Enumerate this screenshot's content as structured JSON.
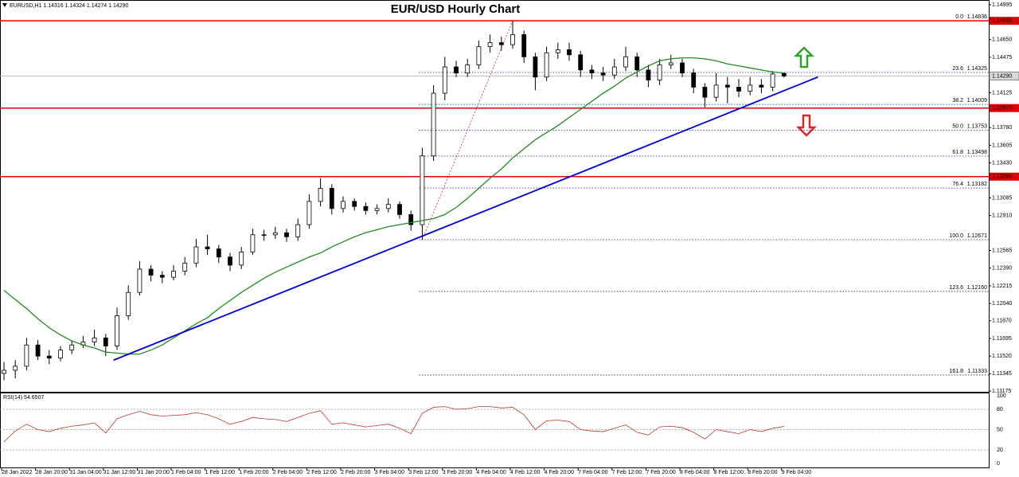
{
  "chart_data": {
    "type": "candlestick",
    "title": "EUR/USD Hourly Chart",
    "header": "EURUSD,H1  1.14316 1.14324 1.14274 1.14290",
    "categories": [
      "28 Jan 2022",
      null,
      null,
      "28 Jan 20:00",
      null,
      null,
      "31 Jan 04:00",
      null,
      null,
      "31 Jan 12:00",
      null,
      null,
      "31 Jan 20:00",
      null,
      null,
      "1 Feb 04:00",
      null,
      null,
      "1 Feb 12:00",
      null,
      null,
      "1 Feb 20:00",
      null,
      null,
      "2 Feb 04:00",
      null,
      null,
      "2 Feb 12:00",
      null,
      null,
      "2 Feb 20:00",
      null,
      null,
      "3 Feb 04:00",
      null,
      null,
      "3 Feb 12:00",
      null,
      null,
      "3 Feb 20:00",
      null,
      null,
      "4 Feb 04:00",
      null,
      null,
      "4 Feb 12:00",
      null,
      null,
      "4 Feb 20:00",
      null,
      null,
      "7 Feb 04:00",
      null,
      null,
      "7 Feb 12:00",
      null,
      null,
      "7 Feb 20:00",
      null,
      null,
      "8 Feb 04:00",
      null,
      null,
      "8 Feb 12:00",
      null,
      null,
      "8 Feb 20:00",
      null,
      null,
      "9 Feb 04:00"
    ],
    "open": [
      1.1135,
      1.1138,
      1.1142,
      1.1163,
      1.1152,
      1.115,
      1.1158,
      1.1163,
      1.1166,
      1.117,
      1.1162,
      1.1192,
      1.1215,
      1.1238,
      1.1232,
      1.123,
      1.1236,
      1.1244,
      1.126,
      1.1258,
      1.125,
      1.1242,
      1.1255,
      1.1272,
      1.1272,
      1.1274,
      1.127,
      1.1282,
      1.1305,
      1.1318,
      1.1298,
      1.1305,
      1.13,
      1.1296,
      1.1298,
      1.1302,
      1.1292,
      1.1282,
      1.135,
      1.1412,
      1.1438,
      1.1432,
      1.144,
      1.1458,
      1.1462,
      1.146,
      1.147,
      1.1448,
      1.1428,
      1.1452,
      1.1455,
      1.145,
      1.1435,
      1.1432,
      1.143,
      1.1438,
      1.1448,
      1.1435,
      1.1425,
      1.144,
      1.1442,
      1.1432,
      1.1418,
      1.1408,
      1.142,
      1.1418,
      1.1414,
      1.142,
      1.1418,
      1.14316
    ],
    "high": [
      1.1146,
      1.1148,
      1.117,
      1.1168,
      1.1158,
      1.1162,
      1.1167,
      1.1172,
      1.1178,
      1.1174,
      1.12,
      1.1222,
      1.1246,
      1.1242,
      1.1236,
      1.1242,
      1.125,
      1.1268,
      1.1272,
      1.1262,
      1.1254,
      1.126,
      1.1278,
      1.1277,
      1.128,
      1.1278,
      1.1288,
      1.1312,
      1.1328,
      1.1322,
      1.131,
      1.1308,
      1.1304,
      1.1302,
      1.1308,
      1.1305,
      1.1296,
      1.1358,
      1.142,
      1.1448,
      1.1444,
      1.1446,
      1.1464,
      1.147,
      1.1468,
      1.14836,
      1.1474,
      1.1452,
      1.1458,
      1.1462,
      1.1462,
      1.1454,
      1.144,
      1.1438,
      1.1446,
      1.1458,
      1.1452,
      1.144,
      1.1446,
      1.145,
      1.1446,
      1.1436,
      1.1422,
      1.1432,
      1.1428,
      1.1426,
      1.1428,
      1.1426,
      1.1434,
      1.14324
    ],
    "low": [
      1.1128,
      1.113,
      1.1138,
      1.1148,
      1.1144,
      1.1147,
      1.1154,
      1.116,
      1.1162,
      1.1152,
      1.1158,
      1.1188,
      1.1212,
      1.1226,
      1.1224,
      1.1227,
      1.1232,
      1.124,
      1.1252,
      1.1244,
      1.1236,
      1.1238,
      1.1252,
      1.1266,
      1.1268,
      1.1265,
      1.1266,
      1.1278,
      1.13,
      1.1292,
      1.1294,
      1.1296,
      1.1292,
      1.1292,
      1.1294,
      1.1288,
      1.1276,
      1.12671,
      1.1345,
      1.1405,
      1.1428,
      1.1428,
      1.1436,
      1.1452,
      1.1454,
      1.1456,
      1.1442,
      1.1415,
      1.1424,
      1.1446,
      1.1444,
      1.1428,
      1.1426,
      1.1424,
      1.1426,
      1.1434,
      1.1428,
      1.1418,
      1.142,
      1.1436,
      1.1428,
      1.1412,
      1.1398,
      1.1404,
      1.1402,
      1.1408,
      1.141,
      1.1412,
      1.1414,
      1.14274
    ],
    "close": [
      1.1138,
      1.1142,
      1.1163,
      1.1152,
      1.115,
      1.1158,
      1.1163,
      1.1166,
      1.117,
      1.1162,
      1.1192,
      1.1215,
      1.1238,
      1.1232,
      1.123,
      1.1236,
      1.1244,
      1.126,
      1.1258,
      1.125,
      1.1242,
      1.1255,
      1.1272,
      1.1272,
      1.1274,
      1.127,
      1.1282,
      1.1305,
      1.1318,
      1.1298,
      1.1305,
      1.13,
      1.1296,
      1.1298,
      1.1302,
      1.1292,
      1.1282,
      1.135,
      1.1412,
      1.1438,
      1.1432,
      1.144,
      1.1458,
      1.1462,
      1.146,
      1.147,
      1.1448,
      1.1428,
      1.1452,
      1.1455,
      1.145,
      1.1435,
      1.1432,
      1.143,
      1.1438,
      1.1448,
      1.1435,
      1.1425,
      1.144,
      1.1442,
      1.1432,
      1.1418,
      1.1408,
      1.142,
      1.1418,
      1.1414,
      1.142,
      1.1418,
      1.1431,
      1.1429
    ],
    "ma": {
      "color": "#228b22",
      "values": [
        1.1217,
        1.1208,
        1.1199,
        1.1189,
        1.118,
        1.1173,
        1.1167,
        1.1163,
        1.116,
        1.1156,
        1.1155,
        1.1154,
        1.1154,
        1.1158,
        1.1163,
        1.117,
        1.1177,
        1.1184,
        1.119,
        1.1199,
        1.1207,
        1.1215,
        1.1222,
        1.1229,
        1.1235,
        1.124,
        1.1245,
        1.125,
        1.1254,
        1.126,
        1.1265,
        1.127,
        1.1274,
        1.1277,
        1.128,
        1.1282,
        1.1284,
        1.1286,
        1.1288,
        1.1292,
        1.1299,
        1.1308,
        1.1318,
        1.1328,
        1.1337,
        1.1348,
        1.1357,
        1.1366,
        1.1373,
        1.138,
        1.1388,
        1.1396,
        1.1404,
        1.1412,
        1.1419,
        1.1427,
        1.1433,
        1.1439,
        1.1444,
        1.1446,
        1.1447,
        1.1447,
        1.1446,
        1.1444,
        1.1441,
        1.1439,
        1.1437,
        1.1435,
        1.1433,
        1.1432
      ]
    },
    "trendline": {
      "color": "#0000cc",
      "x": [
        9.7,
        72.0
      ],
      "values": [
        1.1148,
        1.1428
      ]
    },
    "ylim": [
      1.11167,
      1.15034
    ],
    "yticks": [
      {
        "value": 1.14995,
        "label": "1.14995"
      },
      {
        "value": 1.1465,
        "label": "1.14650"
      },
      {
        "value": 1.14475,
        "label": "1.14475"
      },
      {
        "value": 1.14125,
        "label": "1.14125"
      },
      {
        "value": 1.1378,
        "label": "1.13780"
      },
      {
        "value": 1.13605,
        "label": "1.13605"
      },
      {
        "value": 1.1343,
        "label": "1.13430"
      },
      {
        "value": 1.13085,
        "label": "1.13085"
      },
      {
        "value": 1.1291,
        "label": "1.12910"
      },
      {
        "value": 1.12565,
        "label": "1.12565"
      },
      {
        "value": 1.1239,
        "label": "1.12390"
      },
      {
        "value": 1.12215,
        "label": "1.12215"
      },
      {
        "value": 1.1204,
        "label": "1.12040"
      },
      {
        "value": 1.1187,
        "label": "1.11870"
      },
      {
        "value": 1.11695,
        "label": "1.11695"
      },
      {
        "value": 1.1152,
        "label": "1.11520"
      },
      {
        "value": 1.11345,
        "label": "1.11345"
      },
      {
        "value": 1.11175,
        "label": "1.11175"
      }
    ],
    "current_price": {
      "value": 1.1429,
      "label": "1.14290"
    },
    "red_lines": [
      1.14836,
      1.13973,
      1.13295
    ],
    "fib": {
      "anchor_x": [
        37,
        45
      ],
      "levels": [
        {
          "ratio": "0.0",
          "value": 1.14836,
          "label": "1.14836"
        },
        {
          "ratio": "23.6",
          "value": 1.14325,
          "label": "1.14325"
        },
        {
          "ratio": "38.2",
          "value": 1.14009,
          "label": "1.14009"
        },
        {
          "ratio": "50.0",
          "value": 1.13753,
          "label": "1.13753"
        },
        {
          "ratio": "61.8",
          "value": 1.13498,
          "label": "1.13498"
        },
        {
          "ratio": "76.4",
          "value": 1.13182,
          "label": "1.13182"
        },
        {
          "ratio": "100.0",
          "value": 1.12671,
          "label": "1.12671"
        },
        {
          "ratio": "123.6",
          "value": 1.1216,
          "label": "1.12160"
        },
        {
          "ratio": "161.8",
          "value": 1.11333,
          "label": "1.11333"
        }
      ]
    },
    "rsi": {
      "label": "RSI(14) 54.6507",
      "color": "#c0392b",
      "ylim": [
        0,
        100
      ],
      "yticks": [
        100,
        80,
        50,
        20,
        0
      ],
      "values": [
        32,
        48,
        58,
        50,
        47,
        52,
        55,
        57,
        60,
        45,
        66,
        72,
        77,
        72,
        70,
        71,
        72,
        75,
        72,
        66,
        58,
        62,
        68,
        66,
        65,
        62,
        68,
        74,
        78,
        58,
        60,
        57,
        54,
        56,
        58,
        52,
        44,
        74,
        83,
        84,
        80,
        81,
        84,
        84,
        82,
        83,
        72,
        50,
        63,
        64,
        62,
        50,
        48,
        47,
        52,
        57,
        46,
        42,
        54,
        55,
        53,
        46,
        36,
        50,
        47,
        44,
        50,
        47,
        52,
        54.6507
      ]
    }
  }
}
